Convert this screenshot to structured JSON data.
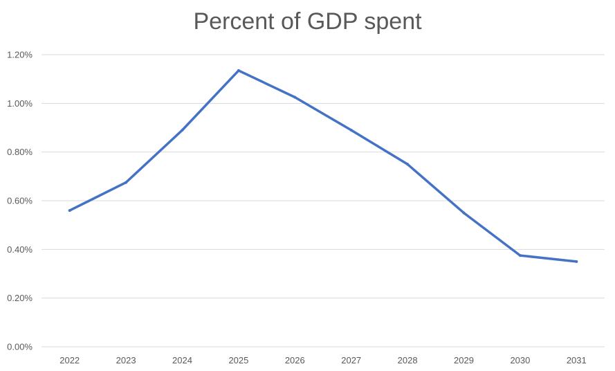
{
  "chart_data": {
    "type": "line",
    "title": "Percent of GDP spent",
    "xlabel": "",
    "ylabel": "",
    "categories": [
      "2022",
      "2023",
      "2024",
      "2025",
      "2026",
      "2027",
      "2028",
      "2029",
      "2030",
      "2031"
    ],
    "series": [
      {
        "values": [
          0.0056,
          0.00675,
          0.0089,
          0.01135,
          0.01025,
          0.0089,
          0.0075,
          0.0055,
          0.00375,
          0.0035
        ],
        "color": "#4472C4"
      }
    ],
    "y_ticks": [
      "0.00%",
      "0.20%",
      "0.40%",
      "0.60%",
      "0.80%",
      "1.00%",
      "1.20%"
    ],
    "ylim": [
      0,
      0.012
    ],
    "grid": true,
    "legend": "none",
    "gridline_color": "#D9D9D9",
    "text_color": "#595959"
  }
}
